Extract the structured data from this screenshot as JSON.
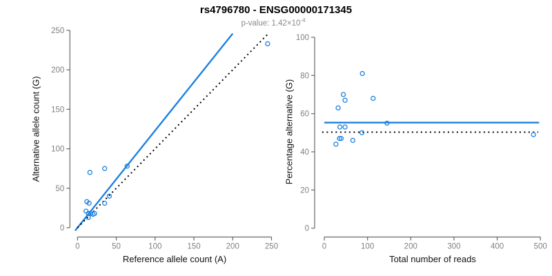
{
  "header": {
    "title": "rs4796780 - ENSG00000171345",
    "pvalue_label": "p-value: 1.42×10",
    "pvalue_exponent": "-4"
  },
  "colors": {
    "accent_blue": "#1d80e2",
    "line_black": "#000000",
    "axis_line_gray": "#666666",
    "tick_label_gray": "#808080",
    "axis_title_color": "#111111",
    "subtitle_gray": "#8a8a8a"
  },
  "chart_data": [
    {
      "type": "scatter",
      "panel": "left",
      "xlabel": "Reference allele count (A)",
      "ylabel": "Alternative allele count (G)",
      "xlim": [
        0,
        250
      ],
      "ylim": [
        0,
        250
      ],
      "xticks": [
        0,
        50,
        100,
        150,
        200,
        250
      ],
      "yticks": [
        0,
        50,
        100,
        150,
        200,
        250
      ],
      "grid": false,
      "marker": "open-circle",
      "points": [
        [
          16,
          70
        ],
        [
          35,
          75
        ],
        [
          64,
          78
        ],
        [
          12,
          33
        ],
        [
          15,
          31
        ],
        [
          35,
          31
        ],
        [
          41,
          40
        ],
        [
          11,
          21
        ],
        [
          14,
          18
        ],
        [
          17,
          18
        ],
        [
          20,
          17
        ],
        [
          22,
          18
        ],
        [
          14,
          13
        ],
        [
          245,
          233
        ]
      ],
      "lines": [
        {
          "name": "fit-line",
          "slope": 1.23,
          "intercept": 0,
          "x_start": -3,
          "x_end": 200,
          "color": "blue",
          "dashed": false
        },
        {
          "name": "identity-line",
          "slope": 1,
          "intercept": 0,
          "x_start": 0,
          "x_end": 246,
          "color": "black",
          "dashed": true
        }
      ]
    },
    {
      "type": "scatter",
      "panel": "right",
      "xlabel": "Total number of reads",
      "ylabel": "Percentage alternative (G)",
      "xlim": [
        0,
        500
      ],
      "ylim": [
        0,
        100
      ],
      "xticks": [
        0,
        100,
        200,
        300,
        400,
        500
      ],
      "yticks": [
        0,
        20,
        40,
        60,
        80,
        100
      ],
      "grid": false,
      "marker": "open-circle",
      "points": [
        [
          88,
          81
        ],
        [
          44,
          70
        ],
        [
          48,
          67
        ],
        [
          113,
          68
        ],
        [
          32,
          63
        ],
        [
          145,
          55
        ],
        [
          36,
          53
        ],
        [
          48,
          53
        ],
        [
          87,
          50
        ],
        [
          484,
          49
        ],
        [
          35,
          47
        ],
        [
          39,
          47
        ],
        [
          66,
          46
        ],
        [
          27,
          44
        ]
      ],
      "lines": [
        {
          "name": "fit-line",
          "slope": 0,
          "intercept": 55.3,
          "x_start": 0,
          "x_end": 497,
          "color": "blue",
          "dashed": false
        },
        {
          "name": "null-line",
          "slope": 0,
          "intercept": 50.3,
          "x_start": -5,
          "x_end": 495,
          "color": "black",
          "dashed": true
        }
      ]
    }
  ]
}
